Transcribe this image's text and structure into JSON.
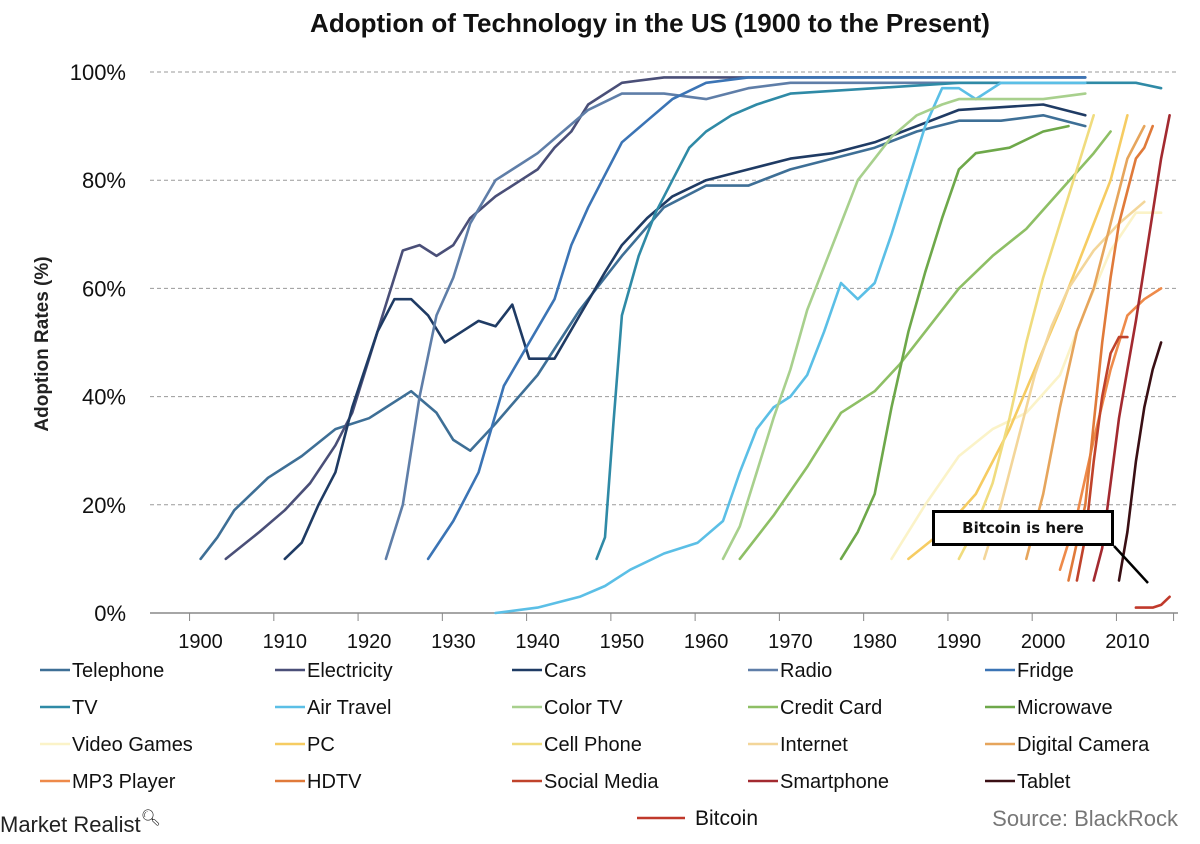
{
  "title": "Adoption of Technology in the US (1900 to the Present)",
  "chart_data": {
    "type": "line",
    "title": "Adoption of Technology in the US (1900 to the Present)",
    "xlabel": "",
    "ylabel": "Adoption Rates (%)",
    "xlim": [
      1894,
      2016
    ],
    "ylim": [
      0,
      100
    ],
    "x_ticks": [
      "1900",
      "1910",
      "1920",
      "1930",
      "1940",
      "1950",
      "1960",
      "1970",
      "1980",
      "1990",
      "2000",
      "2010"
    ],
    "y_ticks": [
      "0%",
      "20%",
      "40%",
      "60%",
      "80%",
      "100%"
    ],
    "grid": "horizontal dashed",
    "legend_position": "bottom",
    "series": [
      {
        "name": "Telephone",
        "color": "#3e6f96",
        "points": [
          [
            1900,
            10
          ],
          [
            1902,
            14
          ],
          [
            1904,
            19
          ],
          [
            1908,
            25
          ],
          [
            1912,
            29
          ],
          [
            1916,
            34
          ],
          [
            1920,
            36
          ],
          [
            1925,
            41
          ],
          [
            1928,
            37
          ],
          [
            1930,
            32
          ],
          [
            1932,
            30
          ],
          [
            1935,
            35
          ],
          [
            1940,
            44
          ],
          [
            1945,
            56
          ],
          [
            1950,
            66
          ],
          [
            1955,
            75
          ],
          [
            1960,
            79
          ],
          [
            1965,
            79
          ],
          [
            1970,
            82
          ],
          [
            1975,
            84
          ],
          [
            1980,
            86
          ],
          [
            1985,
            89
          ],
          [
            1990,
            91
          ],
          [
            1995,
            91
          ],
          [
            2000,
            92
          ],
          [
            2005,
            90
          ]
        ]
      },
      {
        "name": "Electricity",
        "color": "#4a4f78",
        "points": [
          [
            1903,
            10
          ],
          [
            1907,
            15
          ],
          [
            1910,
            19
          ],
          [
            1913,
            24
          ],
          [
            1916,
            31
          ],
          [
            1918,
            37
          ],
          [
            1920,
            47
          ],
          [
            1922,
            57
          ],
          [
            1924,
            67
          ],
          [
            1926,
            68
          ],
          [
            1928,
            66
          ],
          [
            1930,
            68
          ],
          [
            1932,
            73
          ],
          [
            1935,
            77
          ],
          [
            1938,
            80
          ],
          [
            1940,
            82
          ],
          [
            1942,
            86
          ],
          [
            1944,
            89
          ],
          [
            1946,
            94
          ],
          [
            1950,
            98
          ],
          [
            1955,
            99
          ],
          [
            1960,
            99
          ],
          [
            2005,
            99
          ]
        ]
      },
      {
        "name": "Cars",
        "color": "#1f3b64",
        "points": [
          [
            1910,
            10
          ],
          [
            1912,
            13
          ],
          [
            1914,
            20
          ],
          [
            1916,
            26
          ],
          [
            1918,
            38
          ],
          [
            1921,
            52
          ],
          [
            1923,
            58
          ],
          [
            1925,
            58
          ],
          [
            1927,
            55
          ],
          [
            1929,
            50
          ],
          [
            1931,
            52
          ],
          [
            1933,
            54
          ],
          [
            1935,
            53
          ],
          [
            1937,
            57
          ],
          [
            1939,
            47
          ],
          [
            1942,
            47
          ],
          [
            1945,
            55
          ],
          [
            1948,
            63
          ],
          [
            1950,
            68
          ],
          [
            1953,
            73
          ],
          [
            1956,
            77
          ],
          [
            1960,
            80
          ],
          [
            1965,
            82
          ],
          [
            1970,
            84
          ],
          [
            1975,
            85
          ],
          [
            1980,
            87
          ],
          [
            1990,
            93
          ],
          [
            2000,
            94
          ],
          [
            2005,
            92
          ]
        ]
      },
      {
        "name": "Radio",
        "color": "#5f7ea8",
        "points": [
          [
            1922,
            10
          ],
          [
            1924,
            20
          ],
          [
            1926,
            40
          ],
          [
            1928,
            55
          ],
          [
            1930,
            62
          ],
          [
            1932,
            72
          ],
          [
            1935,
            80
          ],
          [
            1938,
            83
          ],
          [
            1940,
            85
          ],
          [
            1943,
            89
          ],
          [
            1946,
            93
          ],
          [
            1950,
            96
          ],
          [
            1955,
            96
          ],
          [
            1960,
            95
          ],
          [
            1965,
            97
          ],
          [
            1970,
            98
          ],
          [
            2005,
            98
          ]
        ]
      },
      {
        "name": "Fridge",
        "color": "#3b74b5",
        "points": [
          [
            1927,
            10
          ],
          [
            1930,
            17
          ],
          [
            1933,
            26
          ],
          [
            1936,
            42
          ],
          [
            1939,
            50
          ],
          [
            1942,
            58
          ],
          [
            1944,
            68
          ],
          [
            1946,
            75
          ],
          [
            1948,
            81
          ],
          [
            1950,
            87
          ],
          [
            1953,
            91
          ],
          [
            1956,
            95
          ],
          [
            1960,
            98
          ],
          [
            1965,
            99
          ],
          [
            2005,
            99
          ]
        ]
      },
      {
        "name": "TV",
        "color": "#2f8aa6",
        "points": [
          [
            1947,
            10
          ],
          [
            1948,
            14
          ],
          [
            1949,
            35
          ],
          [
            1950,
            55
          ],
          [
            1952,
            66
          ],
          [
            1954,
            74
          ],
          [
            1956,
            80
          ],
          [
            1958,
            86
          ],
          [
            1960,
            89
          ],
          [
            1963,
            92
          ],
          [
            1966,
            94
          ],
          [
            1970,
            96
          ],
          [
            1980,
            97
          ],
          [
            1990,
            98
          ],
          [
            2005,
            98
          ],
          [
            2011,
            98
          ],
          [
            2014,
            97
          ]
        ]
      },
      {
        "name": "Air Travel",
        "color": "#5bbfe6",
        "points": [
          [
            1935,
            0
          ],
          [
            1940,
            1
          ],
          [
            1945,
            3
          ],
          [
            1948,
            5
          ],
          [
            1951,
            8
          ],
          [
            1955,
            11
          ],
          [
            1959,
            13
          ],
          [
            1962,
            17
          ],
          [
            1964,
            26
          ],
          [
            1966,
            34
          ],
          [
            1968,
            38
          ],
          [
            1970,
            40
          ],
          [
            1972,
            44
          ],
          [
            1974,
            52
          ],
          [
            1976,
            61
          ],
          [
            1978,
            58
          ],
          [
            1980,
            61
          ],
          [
            1982,
            70
          ],
          [
            1984,
            80
          ],
          [
            1986,
            90
          ],
          [
            1988,
            97
          ],
          [
            1990,
            97
          ],
          [
            1992,
            95
          ],
          [
            1995,
            98
          ],
          [
            2000,
            98
          ],
          [
            2005,
            98
          ]
        ]
      },
      {
        "name": "Color TV",
        "color": "#a8d08d",
        "points": [
          [
            1962,
            10
          ],
          [
            1964,
            16
          ],
          [
            1966,
            26
          ],
          [
            1968,
            36
          ],
          [
            1970,
            45
          ],
          [
            1972,
            56
          ],
          [
            1974,
            64
          ],
          [
            1976,
            72
          ],
          [
            1978,
            80
          ],
          [
            1980,
            84
          ],
          [
            1982,
            88
          ],
          [
            1985,
            92
          ],
          [
            1988,
            94
          ],
          [
            1990,
            95
          ],
          [
            1995,
            95
          ],
          [
            2000,
            95
          ],
          [
            2005,
            96
          ]
        ]
      },
      {
        "name": "Credit Card",
        "color": "#8ebf65",
        "points": [
          [
            1964,
            10
          ],
          [
            1968,
            18
          ],
          [
            1972,
            27
          ],
          [
            1976,
            37
          ],
          [
            1980,
            41
          ],
          [
            1983,
            46
          ],
          [
            1986,
            52
          ],
          [
            1990,
            60
          ],
          [
            1994,
            66
          ],
          [
            1998,
            71
          ],
          [
            2002,
            78
          ],
          [
            2006,
            85
          ],
          [
            2008,
            89
          ]
        ]
      },
      {
        "name": "Microwave",
        "color": "#6ea84a",
        "points": [
          [
            1976,
            10
          ],
          [
            1978,
            15
          ],
          [
            1980,
            22
          ],
          [
            1982,
            38
          ],
          [
            1984,
            52
          ],
          [
            1986,
            63
          ],
          [
            1988,
            73
          ],
          [
            1990,
            82
          ],
          [
            1992,
            85
          ],
          [
            1996,
            86
          ],
          [
            2000,
            89
          ],
          [
            2003,
            90
          ]
        ]
      },
      {
        "name": "Video Games",
        "color": "#fbf3c8",
        "points": [
          [
            1982,
            10
          ],
          [
            1986,
            20
          ],
          [
            1990,
            29
          ],
          [
            1994,
            34
          ],
          [
            1998,
            37
          ],
          [
            2002,
            44
          ],
          [
            2005,
            56
          ],
          [
            2008,
            67
          ],
          [
            2011,
            74
          ],
          [
            2014,
            74
          ]
        ]
      },
      {
        "name": "PC",
        "color": "#f6cc62",
        "points": [
          [
            1984,
            10
          ],
          [
            1988,
            15
          ],
          [
            1992,
            22
          ],
          [
            1996,
            34
          ],
          [
            1999,
            45
          ],
          [
            2002,
            56
          ],
          [
            2005,
            68
          ],
          [
            2008,
            80
          ],
          [
            2010,
            92
          ]
        ]
      },
      {
        "name": "Cell Phone",
        "color": "#f0dc7e",
        "points": [
          [
            1990,
            10
          ],
          [
            1992,
            16
          ],
          [
            1994,
            24
          ],
          [
            1996,
            36
          ],
          [
            1998,
            50
          ],
          [
            2000,
            62
          ],
          [
            2002,
            72
          ],
          [
            2004,
            82
          ],
          [
            2006,
            92
          ]
        ]
      },
      {
        "name": "Internet",
        "color": "#f3d69a",
        "points": [
          [
            1993,
            10
          ],
          [
            1995,
            20
          ],
          [
            1997,
            32
          ],
          [
            1999,
            44
          ],
          [
            2001,
            53
          ],
          [
            2003,
            60
          ],
          [
            2006,
            67
          ],
          [
            2009,
            72
          ],
          [
            2012,
            76
          ]
        ]
      },
      {
        "name": "Digital Camera",
        "color": "#e6a55c",
        "points": [
          [
            1998,
            10
          ],
          [
            2000,
            22
          ],
          [
            2002,
            38
          ],
          [
            2004,
            52
          ],
          [
            2006,
            60
          ],
          [
            2008,
            72
          ],
          [
            2010,
            84
          ],
          [
            2012,
            90
          ]
        ]
      },
      {
        "name": "MP3 Player",
        "color": "#ee8a4a",
        "points": [
          [
            2002,
            8
          ],
          [
            2004,
            18
          ],
          [
            2006,
            32
          ],
          [
            2008,
            45
          ],
          [
            2010,
            55
          ],
          [
            2012,
            58
          ],
          [
            2014,
            60
          ]
        ]
      },
      {
        "name": "HDTV",
        "color": "#e07a3a",
        "points": [
          [
            2003,
            6
          ],
          [
            2005,
            20
          ],
          [
            2006,
            35
          ],
          [
            2007,
            50
          ],
          [
            2008,
            62
          ],
          [
            2009,
            72
          ],
          [
            2010,
            78
          ],
          [
            2011,
            84
          ],
          [
            2012,
            86
          ],
          [
            2013,
            90
          ]
        ]
      },
      {
        "name": "Social Media",
        "color": "#c0432b",
        "points": [
          [
            2004,
            6
          ],
          [
            2005,
            14
          ],
          [
            2006,
            28
          ],
          [
            2007,
            40
          ],
          [
            2008,
            48
          ],
          [
            2009,
            51
          ],
          [
            2010,
            51
          ]
        ]
      },
      {
        "name": "Smartphone",
        "color": "#a32a30",
        "points": [
          [
            2006,
            6
          ],
          [
            2007,
            12
          ],
          [
            2008,
            24
          ],
          [
            2009,
            36
          ],
          [
            2010,
            45
          ],
          [
            2011,
            54
          ],
          [
            2012,
            64
          ],
          [
            2013,
            74
          ],
          [
            2014,
            84
          ],
          [
            2015,
            92
          ]
        ]
      },
      {
        "name": "Tablet",
        "color": "#3a0f14",
        "points": [
          [
            2009,
            6
          ],
          [
            2010,
            15
          ],
          [
            2011,
            28
          ],
          [
            2012,
            38
          ],
          [
            2013,
            45
          ],
          [
            2014,
            50
          ]
        ]
      },
      {
        "name": "Bitcoin",
        "color": "#c0392b",
        "points": [
          [
            2011,
            1
          ],
          [
            2012,
            1
          ],
          [
            2013,
            1
          ],
          [
            2014,
            1.5
          ],
          [
            2015,
            3
          ]
        ]
      }
    ]
  },
  "annotation": {
    "text": "Bitcoin is here"
  },
  "footer": {
    "brand": "Market Realist",
    "brand_icon": "magnifier-icon",
    "source": "Source: BlackRock"
  }
}
